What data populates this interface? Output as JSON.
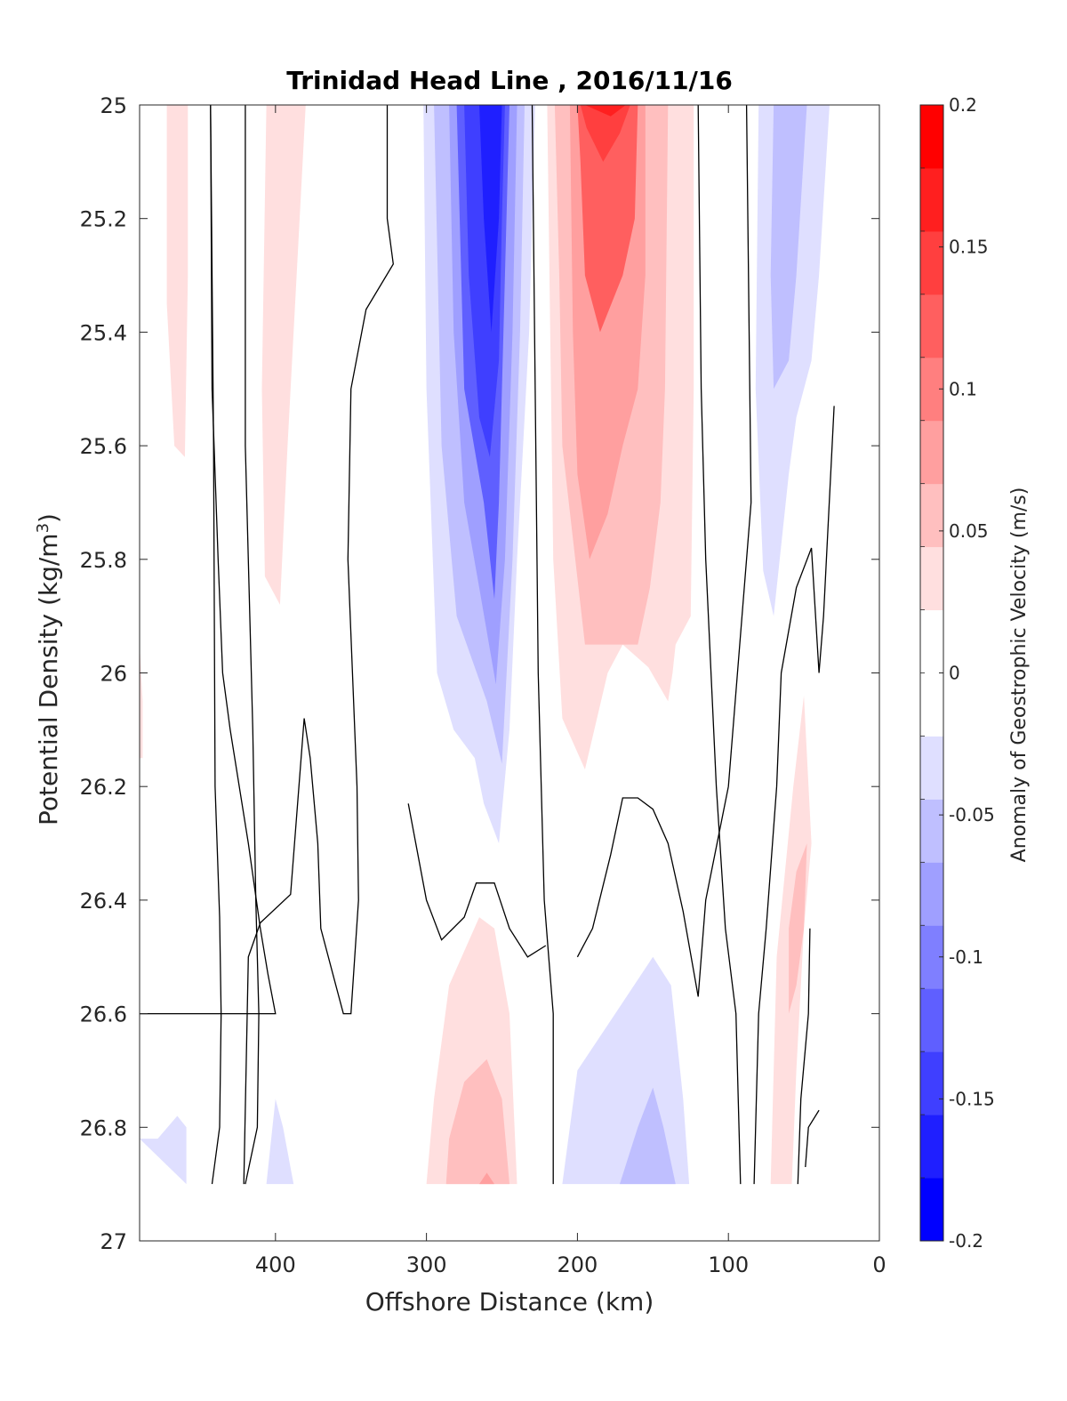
{
  "chart_data": {
    "type": "contour",
    "title": "Trinidad Head Line , 2016/11/16",
    "xlabel": "Offshore Distance (km)",
    "ylabel": "Potential Density (kg/m3)",
    "ylabel_main": "Potential Density (kg/m",
    "ylabel_sup": "3",
    "ylabel_close": ")",
    "xlim": [
      490,
      0
    ],
    "ylim": [
      25,
      27
    ],
    "y_reversed": true,
    "x_reversed": true,
    "xticks": [
      400,
      300,
      200,
      100,
      0
    ],
    "yticks": [
      25,
      25.2,
      25.4,
      25.6,
      25.8,
      26,
      26.2,
      26.4,
      26.6,
      26.8,
      27
    ],
    "xtick_labels": [
      "400",
      "300",
      "200",
      "100",
      "0"
    ],
    "ytick_labels": [
      "25",
      "25.2",
      "25.4",
      "25.6",
      "25.8",
      "26",
      "26.2",
      "26.4",
      "26.6",
      "26.8",
      "27"
    ],
    "colorbar": {
      "label": "Anomaly of Geostrophic Velocity (m/s)",
      "range": [
        -0.2,
        0.2
      ],
      "ticks": [
        0.2,
        0.15,
        0.1,
        0.05,
        0,
        -0.05,
        -0.1,
        -0.15,
        -0.2
      ],
      "tick_labels": [
        "0.2",
        "0.15",
        "0.1",
        "0.05",
        "0",
        "-0.05",
        "-0.1",
        "-0.15",
        "-0.2"
      ],
      "colors": [
        "#0000ff",
        "#1f1fff",
        "#3f3fff",
        "#5f5fff",
        "#7f7fff",
        "#9f9fff",
        "#bfbfff",
        "#dfdfff",
        "#ffffff",
        "#ffffff",
        "#ffdfdf",
        "#ffbfbf",
        "#ff9f9f",
        "#ff7f7f",
        "#ff5f5f",
        "#ff3f3f",
        "#ff1f1f",
        "#ff0000"
      ]
    },
    "filled_regions": [
      {
        "level": 0.0375,
        "points": [
          [
            472,
            25
          ],
          [
            458,
            25
          ],
          [
            458,
            25.3
          ],
          [
            460,
            25.62
          ],
          [
            467,
            25.6
          ],
          [
            472,
            25.35
          ]
        ]
      },
      {
        "level": 0.0375,
        "points": [
          [
            406,
            25
          ],
          [
            380,
            25
          ],
          [
            386,
            25.3
          ],
          [
            392,
            25.6
          ],
          [
            397,
            25.88
          ],
          [
            407,
            25.83
          ],
          [
            409,
            25.5
          ]
        ]
      },
      {
        "level": 0.0375,
        "points": [
          [
            490,
            26.15
          ],
          [
            488,
            26.15
          ],
          [
            488,
            26.05
          ],
          [
            490,
            25.95
          ]
        ]
      },
      {
        "level": 0.0375,
        "points": [
          [
            220,
            25
          ],
          [
            123,
            25
          ],
          [
            123,
            25.5
          ],
          [
            125,
            25.9
          ],
          [
            135,
            25.95
          ],
          [
            137,
            26.0
          ],
          [
            140,
            26.05
          ],
          [
            153,
            25.99
          ],
          [
            170,
            25.95
          ],
          [
            180,
            26.0
          ],
          [
            195,
            26.17
          ],
          [
            210,
            26.08
          ],
          [
            216,
            25.8
          ],
          [
            218,
            25.4
          ]
        ]
      },
      {
        "level": 0.0625,
        "points": [
          [
            215,
            25
          ],
          [
            140,
            25
          ],
          [
            142,
            25.5
          ],
          [
            145,
            25.7
          ],
          [
            152,
            25.85
          ],
          [
            160,
            25.95
          ],
          [
            180,
            25.95
          ],
          [
            195,
            25.95
          ],
          [
            210,
            25.6
          ],
          [
            212,
            25.3
          ]
        ]
      },
      {
        "level": 0.0875,
        "points": [
          [
            205,
            25
          ],
          [
            155,
            25
          ],
          [
            155,
            25.3
          ],
          [
            160,
            25.5
          ],
          [
            170,
            25.6
          ],
          [
            180,
            25.72
          ],
          [
            192,
            25.8
          ],
          [
            200,
            25.65
          ],
          [
            203,
            25.4
          ]
        ]
      },
      {
        "level": 0.1125,
        "points": [
          [
            200,
            25
          ],
          [
            160,
            25
          ],
          [
            162,
            25.2
          ],
          [
            170,
            25.3
          ],
          [
            185,
            25.4
          ],
          [
            195,
            25.3
          ],
          [
            198,
            25.1
          ]
        ]
      },
      {
        "level": 0.1375,
        "points": [
          [
            198,
            25
          ],
          [
            165,
            25
          ],
          [
            172,
            25.05
          ],
          [
            183,
            25.1
          ],
          [
            194,
            25.04
          ]
        ]
      },
      {
        "level": 0.1625,
        "points": [
          [
            195,
            25
          ],
          [
            168,
            25
          ],
          [
            178,
            25.02
          ]
        ]
      },
      {
        "level": 0.0375,
        "points": [
          [
            300,
            26.9
          ],
          [
            240,
            26.9
          ],
          [
            245,
            26.6
          ],
          [
            255,
            26.45
          ],
          [
            265,
            26.43
          ],
          [
            285,
            26.55
          ],
          [
            295,
            26.75
          ]
        ]
      },
      {
        "level": 0.0625,
        "points": [
          [
            287,
            26.9
          ],
          [
            245,
            26.9
          ],
          [
            250,
            26.75
          ],
          [
            260,
            26.68
          ],
          [
            275,
            26.72
          ],
          [
            285,
            26.82
          ]
        ]
      },
      {
        "level": 0.0875,
        "points": [
          [
            265,
            26.9
          ],
          [
            255,
            26.9
          ],
          [
            260,
            26.88
          ]
        ]
      },
      {
        "level": 0.0375,
        "points": [
          [
            72,
            26.9
          ],
          [
            58,
            26.9
          ],
          [
            55,
            26.7
          ],
          [
            50,
            26.45
          ],
          [
            45,
            26.3
          ],
          [
            50,
            26.04
          ],
          [
            57,
            26.2
          ],
          [
            68,
            26.5
          ]
        ]
      },
      {
        "level": 0.0625,
        "points": [
          [
            60,
            26.6
          ],
          [
            55,
            26.55
          ],
          [
            50,
            26.45
          ],
          [
            48,
            26.3
          ],
          [
            55,
            26.35
          ],
          [
            60,
            26.45
          ]
        ]
      },
      {
        "level": -0.0375,
        "points": [
          [
            302,
            25
          ],
          [
            228,
            25
          ],
          [
            232,
            25.4
          ],
          [
            240,
            25.8
          ],
          [
            245,
            26.1
          ],
          [
            252,
            26.3
          ],
          [
            262,
            26.23
          ],
          [
            268,
            26.15
          ],
          [
            282,
            26.1
          ],
          [
            293,
            26.0
          ],
          [
            300,
            25.5
          ]
        ]
      },
      {
        "level": -0.0625,
        "points": [
          [
            295,
            25
          ],
          [
            235,
            25
          ],
          [
            238,
            25.4
          ],
          [
            243,
            25.8
          ],
          [
            250,
            26.16
          ],
          [
            260,
            26.05
          ],
          [
            280,
            25.9
          ],
          [
            290,
            25.6
          ]
        ]
      },
      {
        "level": -0.0875,
        "points": [
          [
            285,
            25
          ],
          [
            240,
            25
          ],
          [
            243,
            25.4
          ],
          [
            248,
            25.8
          ],
          [
            254,
            26.02
          ],
          [
            265,
            25.85
          ],
          [
            275,
            25.7
          ],
          [
            282,
            25.4
          ]
        ]
      },
      {
        "level": -0.1125,
        "points": [
          [
            280,
            25
          ],
          [
            245,
            25
          ],
          [
            248,
            25.3
          ],
          [
            252,
            25.7
          ],
          [
            255,
            25.87
          ],
          [
            262,
            25.7
          ],
          [
            275,
            25.5
          ],
          [
            278,
            25.2
          ]
        ]
      },
      {
        "level": -0.1375,
        "points": [
          [
            275,
            25
          ],
          [
            248,
            25
          ],
          [
            250,
            25.2
          ],
          [
            252,
            25.45
          ],
          [
            258,
            25.62
          ],
          [
            265,
            25.55
          ],
          [
            272,
            25.3
          ]
        ]
      },
      {
        "level": -0.1625,
        "points": [
          [
            265,
            25
          ],
          [
            250,
            25
          ],
          [
            252,
            25.2
          ],
          [
            257,
            25.4
          ],
          [
            262,
            25.2
          ]
        ]
      },
      {
        "level": -0.0375,
        "points": [
          [
            210,
            26.9
          ],
          [
            126,
            26.9
          ],
          [
            130,
            26.75
          ],
          [
            138,
            26.55
          ],
          [
            150,
            26.5
          ],
          [
            175,
            26.6
          ],
          [
            200,
            26.7
          ]
        ]
      },
      {
        "level": -0.0625,
        "points": [
          [
            172,
            26.9
          ],
          [
            135,
            26.9
          ],
          [
            143,
            26.8
          ],
          [
            150,
            26.73
          ],
          [
            160,
            26.8
          ]
        ]
      },
      {
        "level": -0.0375,
        "points": [
          [
            80,
            25
          ],
          [
            33,
            25
          ],
          [
            40,
            25.3
          ],
          [
            45,
            25.45
          ],
          [
            55,
            25.55
          ],
          [
            60,
            25.65
          ],
          [
            70,
            25.9
          ],
          [
            77,
            25.82
          ],
          [
            82,
            25.5
          ]
        ]
      },
      {
        "level": -0.0625,
        "points": [
          [
            70,
            25
          ],
          [
            48,
            25
          ],
          [
            55,
            25.3
          ],
          [
            60,
            25.45
          ],
          [
            70,
            25.5
          ],
          [
            72,
            25.3
          ]
        ]
      },
      {
        "level": -0.0375,
        "points": [
          [
            490,
            26.82
          ],
          [
            459,
            26.9
          ],
          [
            459,
            26.8
          ],
          [
            465,
            26.78
          ],
          [
            478,
            26.82
          ]
        ]
      },
      {
        "level": -0.0375,
        "points": [
          [
            406,
            26.9
          ],
          [
            388,
            26.9
          ],
          [
            395,
            26.8
          ],
          [
            400,
            26.75
          ]
        ]
      }
    ],
    "zero_contours": [
      [
        [
          443,
          25
        ],
        [
          442,
          25.5
        ],
        [
          438,
          25.8
        ],
        [
          435,
          26.0
        ],
        [
          430,
          26.1
        ],
        [
          418,
          26.3
        ],
        [
          410,
          26.45
        ],
        [
          405,
          26.53
        ],
        [
          400,
          26.6
        ],
        [
          490,
          26.6
        ]
      ],
      [
        [
          443,
          25
        ],
        [
          441,
          25.6
        ],
        [
          440,
          26.2
        ],
        [
          437,
          26.43
        ],
        [
          436,
          26.6
        ],
        [
          437,
          26.8
        ],
        [
          442,
          26.9
        ]
      ],
      [
        [
          420,
          25
        ],
        [
          420,
          25.6
        ],
        [
          415,
          26.1
        ],
        [
          413,
          26.4
        ],
        [
          411,
          26.6
        ],
        [
          412,
          26.8
        ],
        [
          420,
          26.9
        ]
      ],
      [
        [
          326,
          25
        ],
        [
          326,
          25.2
        ],
        [
          322,
          25.28
        ],
        [
          340,
          25.36
        ],
        [
          350,
          25.5
        ],
        [
          352,
          25.8
        ],
        [
          349,
          26.0
        ],
        [
          346,
          26.2
        ],
        [
          345,
          26.4
        ],
        [
          350,
          26.6
        ],
        [
          355,
          26.6
        ],
        [
          360,
          26.55
        ],
        [
          370,
          26.45
        ],
        [
          372,
          26.3
        ],
        [
          377,
          26.15
        ],
        [
          381,
          26.08
        ],
        [
          390,
          26.39
        ],
        [
          410,
          26.44
        ],
        [
          418,
          26.5
        ],
        [
          421,
          26.9
        ]
      ],
      [
        [
          230,
          25
        ],
        [
          228,
          25.5
        ],
        [
          226,
          26.0
        ],
        [
          222,
          26.4
        ],
        [
          219,
          26.5
        ],
        [
          216,
          26.6
        ],
        [
          216,
          26.9
        ]
      ],
      [
        [
          312,
          26.23
        ],
        [
          300,
          26.4
        ],
        [
          290,
          26.47
        ],
        [
          275,
          26.43
        ],
        [
          267,
          26.37
        ],
        [
          255,
          26.37
        ],
        [
          245,
          26.45
        ],
        [
          233,
          26.5
        ],
        [
          221,
          26.48
        ]
      ],
      [
        [
          200,
          26.5
        ],
        [
          190,
          26.45
        ],
        [
          178,
          26.32
        ],
        [
          170,
          26.22
        ],
        [
          160,
          26.22
        ],
        [
          150,
          26.24
        ],
        [
          140,
          26.3
        ],
        [
          130,
          26.42
        ],
        [
          120,
          26.57
        ],
        [
          115,
          26.4
        ],
        [
          100,
          26.2
        ],
        [
          85,
          25.7
        ],
        [
          88,
          25
        ]
      ],
      [
        [
          92,
          26.9
        ],
        [
          95,
          26.6
        ],
        [
          102,
          26.45
        ],
        [
          108,
          26.2
        ],
        [
          115,
          25.8
        ],
        [
          118,
          25.5
        ],
        [
          120,
          25.0
        ]
      ],
      [
        [
          30,
          25.53
        ],
        [
          37,
          25.9
        ],
        [
          40,
          26.0
        ],
        [
          45,
          25.78
        ],
        [
          55,
          25.85
        ],
        [
          65,
          26.0
        ],
        [
          68,
          26.2
        ],
        [
          75,
          26.45
        ],
        [
          80,
          26.6
        ],
        [
          83,
          26.9
        ]
      ],
      [
        [
          46,
          26.45
        ],
        [
          47,
          26.6
        ],
        [
          52,
          26.75
        ],
        [
          54,
          26.9
        ]
      ],
      [
        [
          40,
          26.77
        ],
        [
          47,
          26.8
        ],
        [
          49,
          26.87
        ]
      ]
    ]
  }
}
